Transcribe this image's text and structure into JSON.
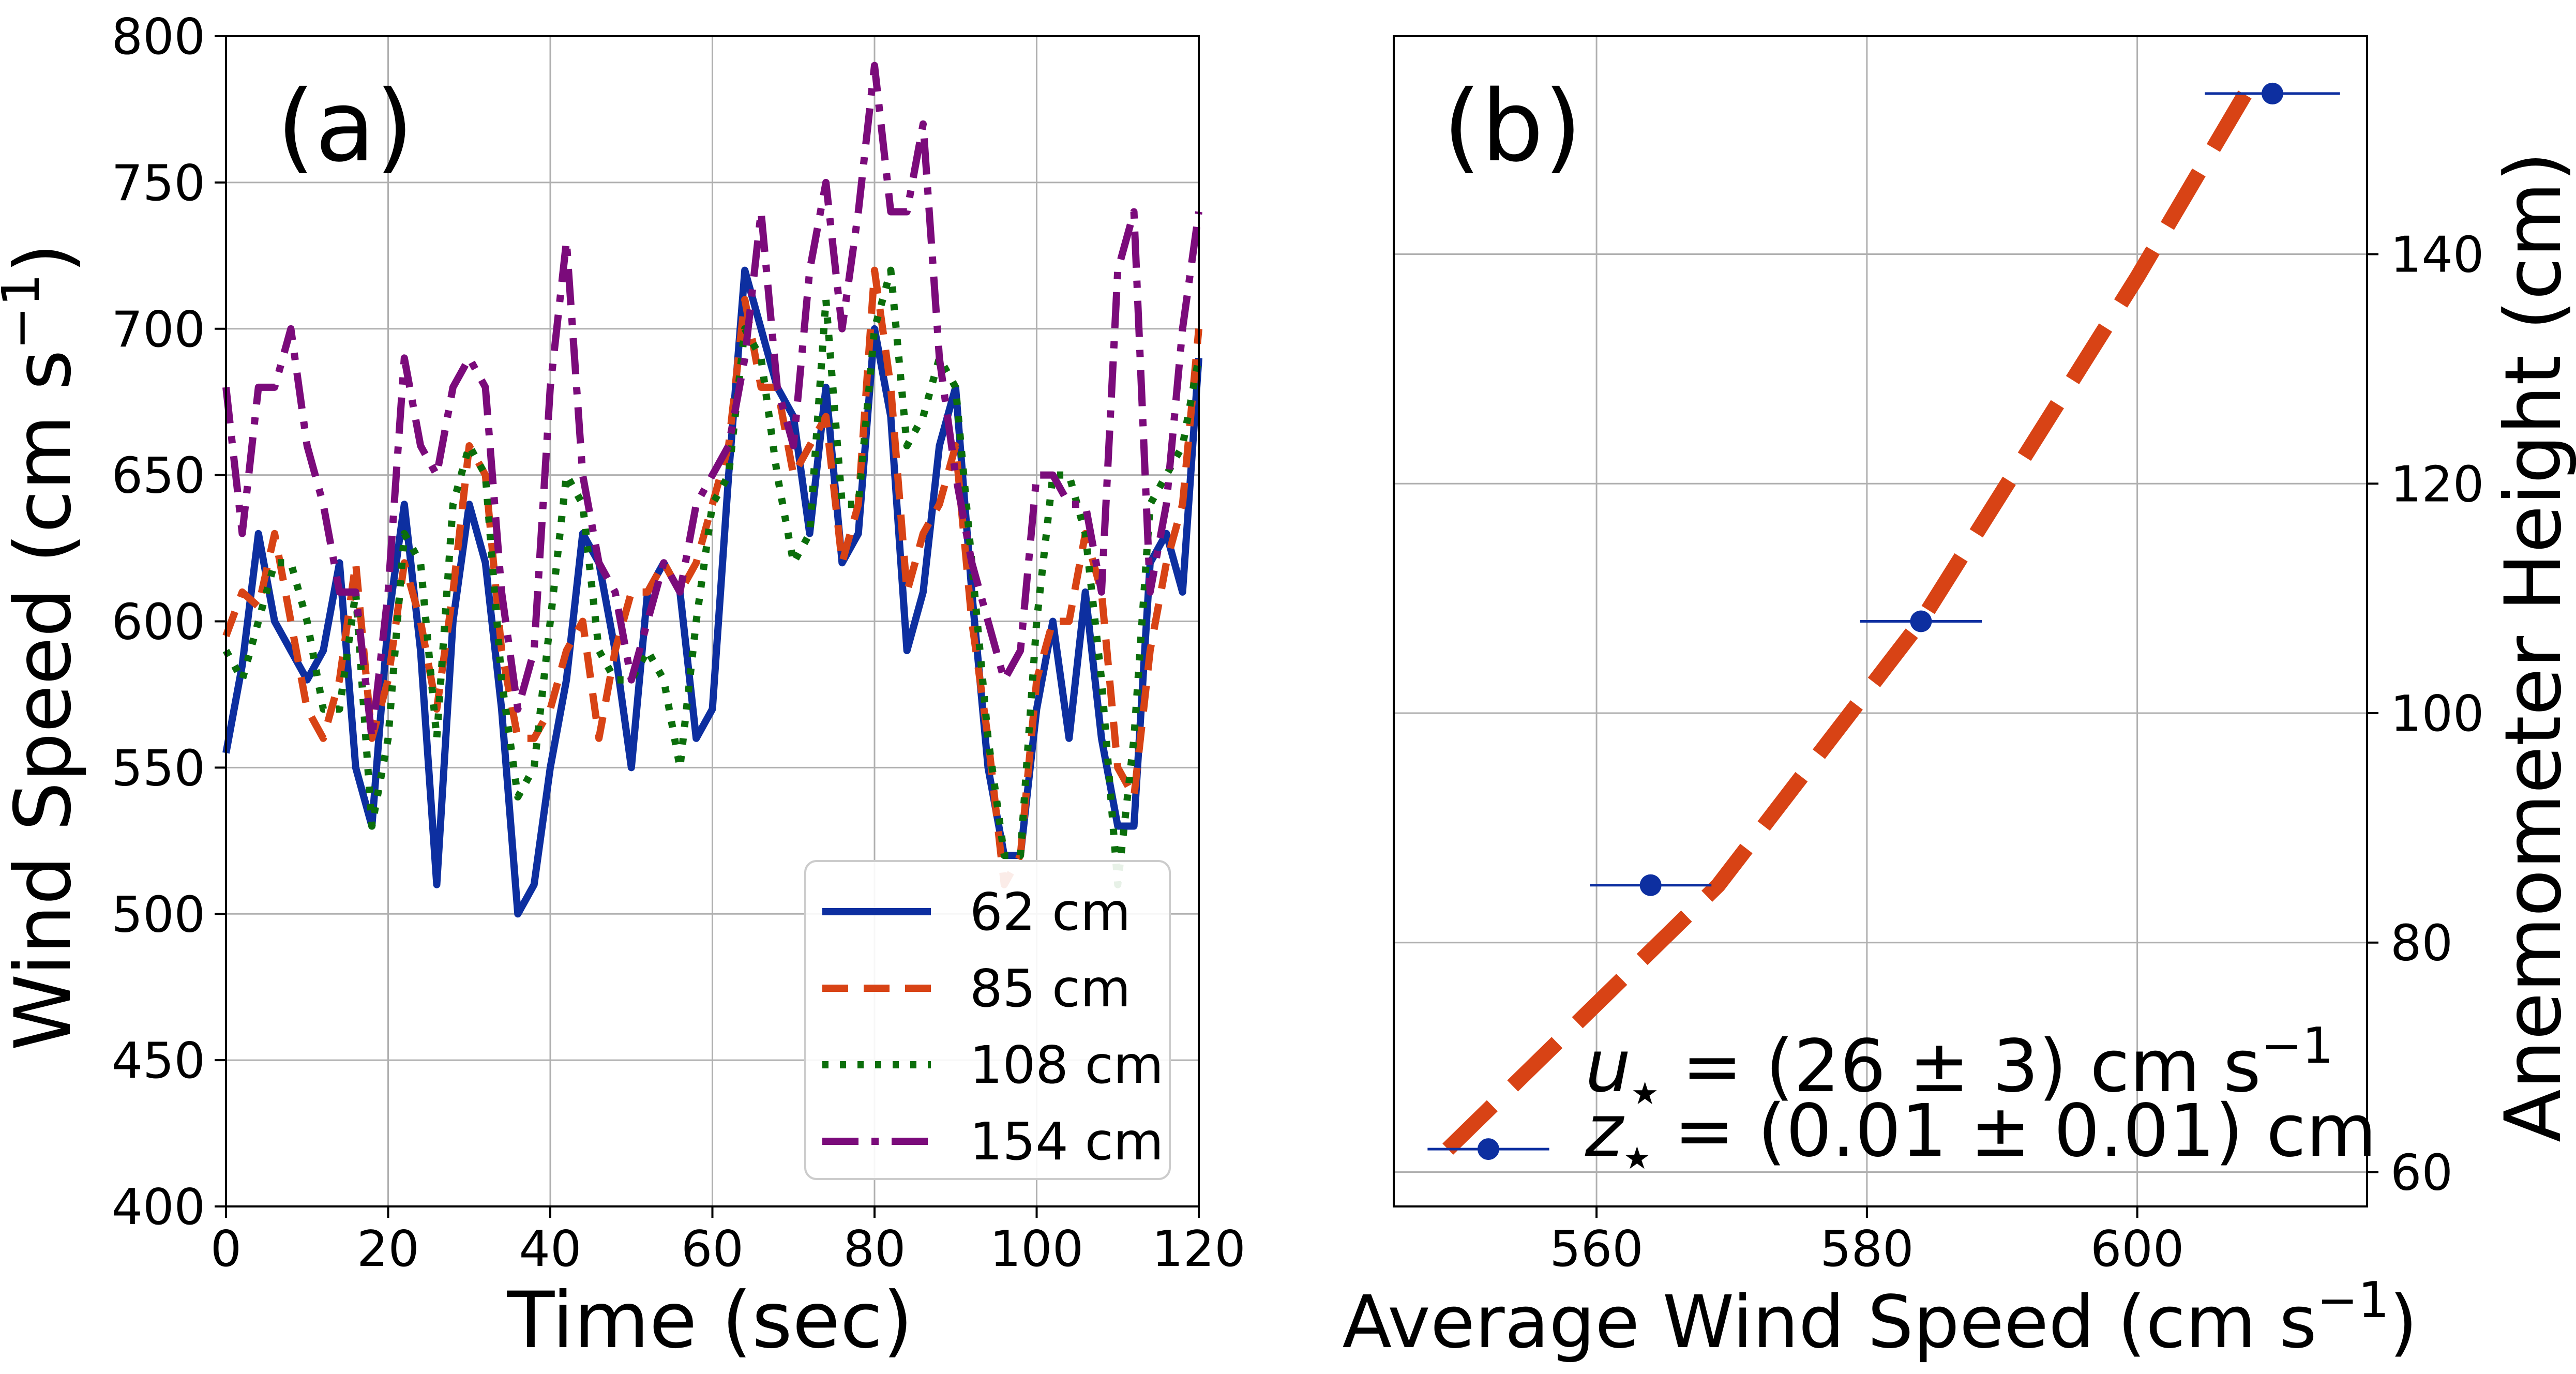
{
  "chart_data": [
    {
      "type": "line",
      "panel_label": "(a)",
      "xlabel": "Time (sec)",
      "ylabel": "Wind Speed (cm s",
      "ylabel_sup": "−1",
      "ylabel_close": ")",
      "xlim": [
        0,
        120
      ],
      "ylim": [
        400,
        800
      ],
      "xticks": [
        0,
        20,
        40,
        60,
        80,
        100,
        120
      ],
      "yticks": [
        400,
        450,
        500,
        550,
        600,
        650,
        700,
        750,
        800
      ],
      "grid": true,
      "legend_position": "lower-right",
      "x": [
        0,
        2,
        4,
        6,
        8,
        10,
        12,
        14,
        16,
        18,
        20,
        22,
        24,
        26,
        28,
        30,
        32,
        34,
        36,
        38,
        40,
        42,
        44,
        46,
        48,
        50,
        52,
        54,
        56,
        58,
        60,
        62,
        64,
        66,
        68,
        70,
        72,
        74,
        76,
        78,
        80,
        82,
        84,
        86,
        88,
        90,
        92,
        94,
        96,
        98,
        100,
        102,
        104,
        106,
        108,
        110,
        112,
        114,
        116,
        118,
        120
      ],
      "series": [
        {
          "name": "62 cm",
          "color": "#0d2fa0",
          "dash": "solid",
          "values": [
            555,
            585,
            630,
            600,
            590,
            580,
            590,
            620,
            550,
            530,
            600,
            640,
            590,
            510,
            600,
            640,
            620,
            570,
            500,
            510,
            550,
            580,
            630,
            620,
            590,
            550,
            610,
            620,
            610,
            560,
            570,
            650,
            720,
            700,
            680,
            670,
            630,
            680,
            620,
            630,
            700,
            670,
            590,
            610,
            660,
            680,
            610,
            550,
            520,
            520,
            570,
            600,
            560,
            610,
            560,
            530,
            530,
            620,
            630,
            610,
            690
          ]
        },
        {
          "name": "85 cm",
          "color": "#d84315",
          "dash": "dashed",
          "values": [
            595,
            610,
            605,
            630,
            600,
            570,
            560,
            580,
            620,
            560,
            580,
            620,
            600,
            570,
            610,
            660,
            650,
            590,
            560,
            560,
            570,
            590,
            600,
            560,
            590,
            610,
            610,
            620,
            610,
            620,
            640,
            660,
            710,
            680,
            680,
            650,
            660,
            670,
            620,
            640,
            720,
            680,
            610,
            630,
            640,
            660,
            600,
            560,
            510,
            520,
            580,
            600,
            600,
            630,
            610,
            550,
            540,
            590,
            620,
            640,
            700
          ]
        },
        {
          "name": "108 cm",
          "color": "#0b6e0b",
          "dash": "dotted",
          "values": [
            590,
            580,
            600,
            620,
            620,
            600,
            570,
            570,
            610,
            530,
            560,
            630,
            620,
            560,
            640,
            660,
            650,
            580,
            540,
            550,
            600,
            650,
            640,
            590,
            580,
            580,
            590,
            580,
            550,
            600,
            640,
            650,
            700,
            690,
            650,
            620,
            630,
            710,
            640,
            640,
            700,
            720,
            660,
            670,
            690,
            680,
            620,
            560,
            520,
            520,
            600,
            650,
            650,
            630,
            580,
            510,
            560,
            640,
            650,
            660,
            690
          ]
        },
        {
          "name": "154 cm",
          "color": "#7b0b7b",
          "dash": "dashdot",
          "values": [
            680,
            630,
            680,
            680,
            700,
            660,
            640,
            610,
            610,
            560,
            610,
            690,
            660,
            650,
            680,
            690,
            680,
            610,
            570,
            590,
            680,
            730,
            650,
            620,
            610,
            580,
            600,
            620,
            610,
            640,
            650,
            660,
            690,
            740,
            680,
            660,
            720,
            750,
            700,
            740,
            790,
            740,
            740,
            770,
            690,
            650,
            620,
            600,
            580,
            590,
            650,
            650,
            640,
            640,
            610,
            720,
            740,
            610,
            640,
            700,
            740
          ]
        }
      ]
    },
    {
      "type": "scatter",
      "panel_label": "(b)",
      "xlabel": "Average Wind Speed (cm s",
      "xlabel_sup": "−1",
      "xlabel_close": ")",
      "ylabel": "Anemometer Height (cm)",
      "y_axis_side": "right",
      "xlim": [
        545,
        617
      ],
      "ylim": [
        57,
        159
      ],
      "xticks": [
        560,
        580,
        600
      ],
      "yticks": [
        60,
        80,
        100,
        120,
        140
      ],
      "grid": true,
      "points": [
        {
          "x": 552,
          "y": 62,
          "xerr": 4.5
        },
        {
          "x": 564,
          "y": 85,
          "xerr": 4.5
        },
        {
          "x": 584,
          "y": 108,
          "xerr": 4.5
        },
        {
          "x": 610,
          "y": 154,
          "xerr": 5
        }
      ],
      "point_color": "#0d2fa0",
      "fit": {
        "color": "#d84315",
        "x": [
          549,
          569,
          584,
          600,
          608
        ],
        "y": [
          62,
          85,
          108,
          138,
          154
        ]
      },
      "annotations": [
        {
          "symbol": "u",
          "rest": " = (26 ± 3) cm s",
          "sup": "−1"
        },
        {
          "symbol": "z",
          "rest": " = (0.01 ± 0.01) cm",
          "sup": ""
        }
      ]
    }
  ]
}
